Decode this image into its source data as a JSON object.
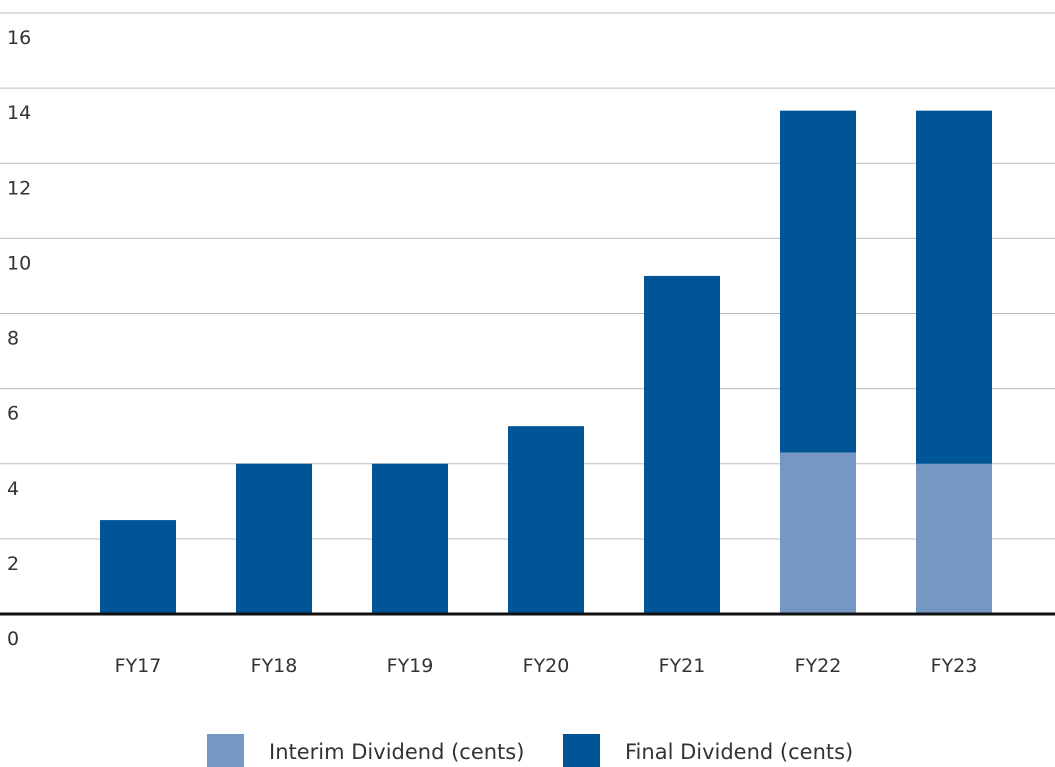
{
  "chart_data": {
    "type": "bar",
    "stacked": true,
    "categories": [
      "FY17",
      "FY18",
      "FY19",
      "FY20",
      "FY21",
      "FY22",
      "FY23"
    ],
    "series": [
      {
        "name": "Interim Dividend (cents)",
        "color": "#7597c3",
        "values": [
          0,
          0,
          0,
          0,
          0,
          4.3,
          4.0
        ]
      },
      {
        "name": "Final Dividend (cents)",
        "color": "#005596",
        "values": [
          2.5,
          4.0,
          4.0,
          5.0,
          9.0,
          9.1,
          9.4
        ]
      }
    ],
    "y_ticks": [
      "0",
      "2",
      "4",
      "6",
      "8",
      "10",
      "12",
      "14",
      "16"
    ],
    "ylim": [
      0,
      16
    ],
    "grid": true,
    "legend_position": "bottom-center"
  }
}
